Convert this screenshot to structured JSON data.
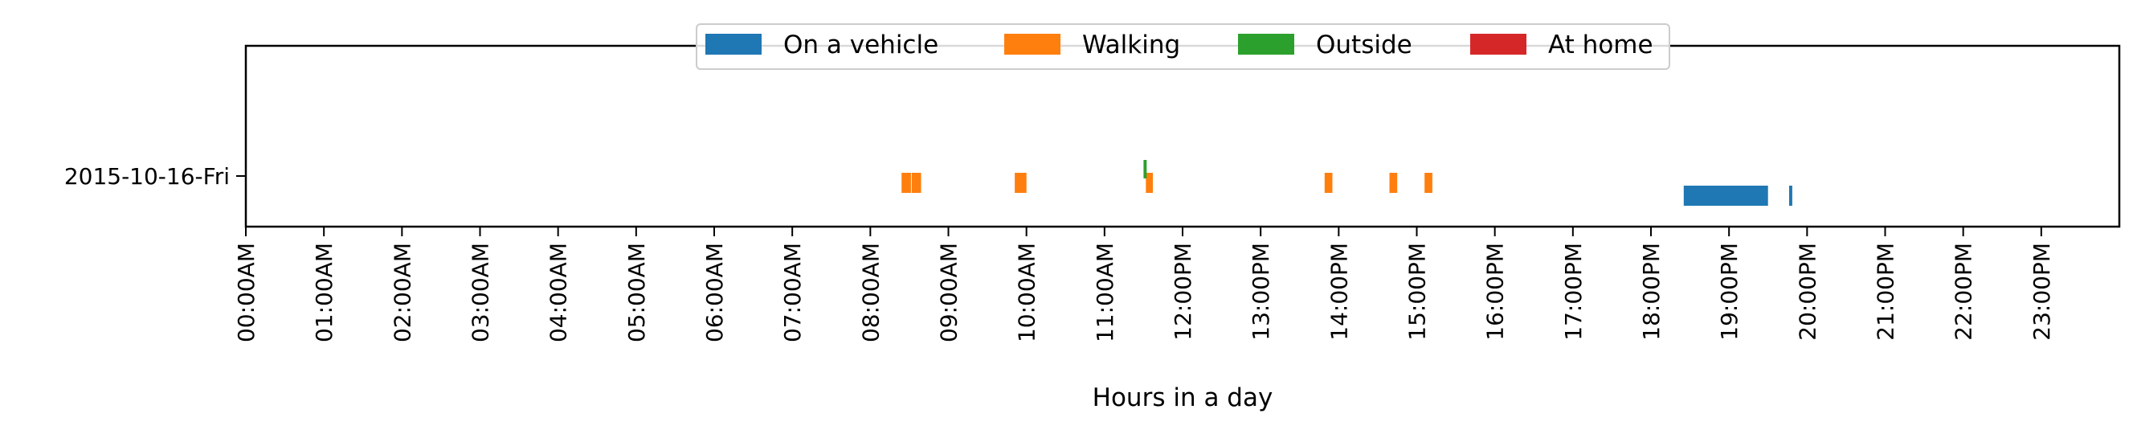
{
  "chart_data": {
    "type": "timeline",
    "title": "",
    "xlabel": "Hours in a day",
    "ylabel": "",
    "xlim": [
      0,
      24
    ],
    "x_ticks": [
      0,
      1,
      2,
      3,
      4,
      5,
      6,
      7,
      8,
      9,
      10,
      11,
      12,
      13,
      14,
      15,
      16,
      17,
      18,
      19,
      20,
      21,
      22,
      23
    ],
    "x_tick_labels": [
      "00:00AM",
      "01:00AM",
      "02:00AM",
      "03:00AM",
      "04:00AM",
      "05:00AM",
      "06:00AM",
      "07:00AM",
      "08:00AM",
      "09:00AM",
      "10:00AM",
      "11:00AM",
      "12:00PM",
      "13:00PM",
      "14:00PM",
      "15:00PM",
      "16:00PM",
      "17:00PM",
      "18:00PM",
      "19:00PM",
      "20:00PM",
      "21:00PM",
      "22:00PM",
      "23:00PM"
    ],
    "rows": [
      "2015-10-16-Fri"
    ],
    "legend_position": "top-center",
    "series": [
      {
        "name": "On a vehicle",
        "color": "#1f77b4",
        "lane": "low",
        "intervals": [
          [
            18.42,
            19.5
          ],
          [
            19.77,
            19.81
          ]
        ]
      },
      {
        "name": "Walking",
        "color": "#ff7f0e",
        "lane": "mid",
        "intervals": [
          [
            8.4,
            8.52
          ],
          [
            8.53,
            8.65
          ],
          [
            9.85,
            10.0
          ],
          [
            11.53,
            11.62
          ],
          [
            13.82,
            13.92
          ],
          [
            14.65,
            14.75
          ],
          [
            15.1,
            15.2
          ]
        ]
      },
      {
        "name": "Outside",
        "color": "#2ca02c",
        "lane": "high",
        "intervals": [
          [
            11.5,
            11.54
          ]
        ]
      },
      {
        "name": "At home",
        "color": "#d62728",
        "lane": "top",
        "intervals": []
      }
    ]
  }
}
